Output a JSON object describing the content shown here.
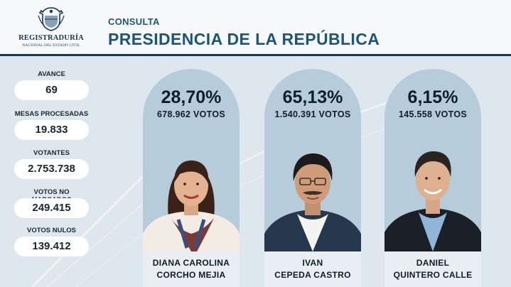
{
  "header": {
    "logo": {
      "name": "REGISTRADURÍA",
      "subtitle": "NACIONAL DEL ESTADO CIVIL"
    },
    "kicker": "CONSULTA",
    "title": "PRESIDENCIA DE LA REPÚBLICA"
  },
  "stats": [
    {
      "label": "AVANCE",
      "value": "69"
    },
    {
      "label": "MESAS PROCESADAS",
      "value": "19.833"
    },
    {
      "label": "VOTANTES",
      "value": "2.753.738"
    },
    {
      "label": "VOTOS NO MARCADOS",
      "value": "249.415"
    },
    {
      "label": "VOTOS NULOS",
      "value": "139.412"
    }
  ],
  "candidates": [
    {
      "percent": "28,70%",
      "votes": "678.962 VOTOS",
      "name_line1": "DIANA CAROLINA",
      "name_line2": "CORCHO MEJIA"
    },
    {
      "percent": "65,13%",
      "votes": "1.540.391 VOTOS",
      "name_line1": "IVAN",
      "name_line2": "CEPEDA CASTRO"
    },
    {
      "percent": "6,15%",
      "votes": "145.558 VOTOS",
      "name_line1": "DANIEL",
      "name_line2": "QUINTERO CALLE"
    }
  ],
  "colors": {
    "brand_navy": "#0f3a5f",
    "title_blue": "#1c5674",
    "card_blue": "#b7ccdb",
    "background": "#dfe7ee"
  }
}
